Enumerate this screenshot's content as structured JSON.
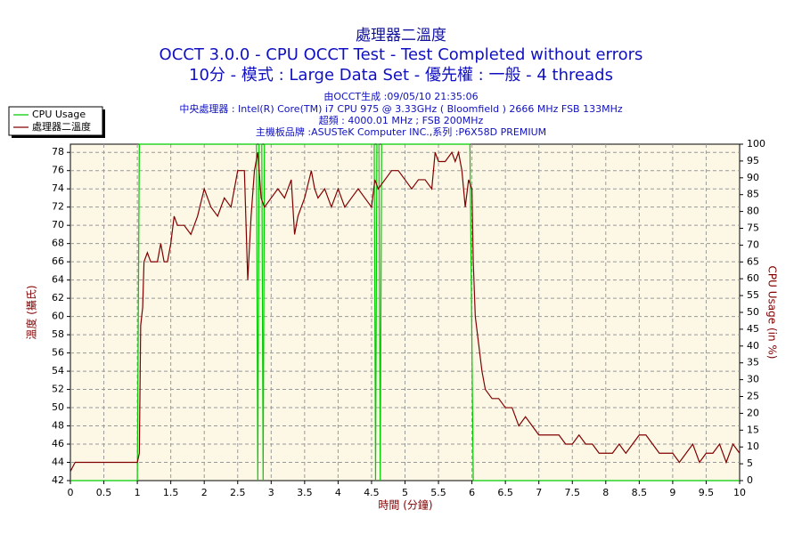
{
  "chart_data": {
    "type": "line",
    "title": "處理器二溫度",
    "subtitle": [
      "OCCT 3.0.0 - CPU OCCT Test - Test Completed without errors",
      "10分 - 模式 : Large Data Set - 優先權 : 一般 - 4 threads"
    ],
    "info": [
      "由OCCT生成 :09/05/10 21:35:06",
      "中央處理器 : Intel(R) Core(TM) i7 CPU 975 @ 3.33GHz ( Bloomfield ) 2666 MHz FSB 133MHz",
      "超頻 : 4000.01 MHz ; FSB 200MHz",
      "主機板品牌 :ASUSTeK Computer INC.,系列 :P6X58D PREMIUM"
    ],
    "x_label": "時間 (分鐘)",
    "y_label": "溫度 (攝氏)",
    "y2_label": "CPU Usage (in %)",
    "xlim": [
      0,
      10
    ],
    "xticks": [
      0,
      0.5,
      1,
      1.5,
      2,
      2.5,
      3,
      3.5,
      4,
      4.5,
      5,
      5.5,
      6,
      6.5,
      7,
      7.5,
      8,
      8.5,
      9,
      9.5,
      10
    ],
    "ylim": [
      42,
      78.9
    ],
    "yticks": [
      42,
      44,
      46,
      48,
      50,
      52,
      54,
      56,
      58,
      60,
      62,
      64,
      66,
      68,
      70,
      72,
      74,
      76,
      78
    ],
    "y2lim": [
      0,
      100
    ],
    "y2ticks": [
      0,
      5,
      10,
      15,
      20,
      25,
      30,
      35,
      40,
      45,
      50,
      55,
      60,
      65,
      70,
      75,
      80,
      85,
      90,
      95,
      100
    ],
    "grid": true,
    "legend": "top-left",
    "series": [
      {
        "name": "CPU Usage",
        "color": "#00cc00",
        "axis": "y2",
        "x": [
          0,
          1.0,
          1.03,
          2.78,
          2.8,
          2.82,
          2.86,
          2.88,
          2.9,
          4.54,
          4.56,
          4.58,
          4.61,
          4.63,
          4.65,
          5.97,
          6.02,
          10
        ],
        "values": [
          0,
          0,
          100,
          100,
          0,
          100,
          100,
          0,
          100,
          100,
          0,
          100,
          100,
          0,
          100,
          100,
          0,
          0
        ]
      },
      {
        "name": "處理器二溫度",
        "color": "#800000",
        "axis": "y",
        "x": [
          0,
          0.07,
          1.0,
          1.03,
          1.05,
          1.08,
          1.1,
          1.15,
          1.2,
          1.3,
          1.35,
          1.4,
          1.45,
          1.5,
          1.55,
          1.6,
          1.7,
          1.8,
          1.85,
          1.9,
          2.0,
          2.1,
          2.2,
          2.3,
          2.4,
          2.5,
          2.6,
          2.65,
          2.7,
          2.75,
          2.8,
          2.85,
          2.9,
          3.0,
          3.1,
          3.2,
          3.3,
          3.35,
          3.4,
          3.5,
          3.6,
          3.65,
          3.7,
          3.8,
          3.9,
          4.0,
          4.1,
          4.2,
          4.3,
          4.4,
          4.5,
          4.55,
          4.6,
          4.7,
          4.8,
          4.9,
          5.0,
          5.1,
          5.2,
          5.3,
          5.4,
          5.45,
          5.5,
          5.6,
          5.7,
          5.75,
          5.8,
          5.85,
          5.9,
          5.95,
          6.0,
          6.02,
          6.05,
          6.1,
          6.15,
          6.2,
          6.3,
          6.4,
          6.5,
          6.6,
          6.7,
          6.8,
          6.9,
          7.0,
          7.1,
          7.2,
          7.3,
          7.4,
          7.5,
          7.6,
          7.7,
          7.8,
          7.9,
          8.0,
          8.1,
          8.2,
          8.3,
          8.4,
          8.5,
          8.6,
          8.7,
          8.8,
          8.9,
          9.0,
          9.1,
          9.2,
          9.3,
          9.4,
          9.5,
          9.6,
          9.7,
          9.8,
          9.9,
          10.0
        ],
        "values": [
          43,
          44,
          44,
          45,
          59,
          61,
          66,
          67,
          66,
          66,
          68,
          66,
          66,
          68,
          71,
          70,
          70,
          69,
          70,
          71,
          74,
          72,
          71,
          73,
          72,
          76,
          76,
          64,
          71,
          76,
          78,
          73,
          72,
          73,
          74,
          73,
          75,
          69,
          71,
          73,
          76,
          74,
          73,
          74,
          72,
          74,
          72,
          73,
          74,
          73,
          72,
          75,
          74,
          75,
          76,
          76,
          75,
          74,
          75,
          75,
          74,
          78,
          77,
          77,
          78,
          77,
          78,
          76,
          72,
          75,
          74,
          66,
          60,
          57,
          54,
          52,
          51,
          51,
          50,
          50,
          48,
          49,
          48,
          47,
          47,
          47,
          47,
          46,
          46,
          47,
          46,
          46,
          45,
          45,
          45,
          46,
          45,
          46,
          47,
          47,
          46,
          45,
          45,
          45,
          44,
          45,
          46,
          44,
          45,
          45,
          46,
          44,
          46,
          45
        ]
      }
    ]
  }
}
